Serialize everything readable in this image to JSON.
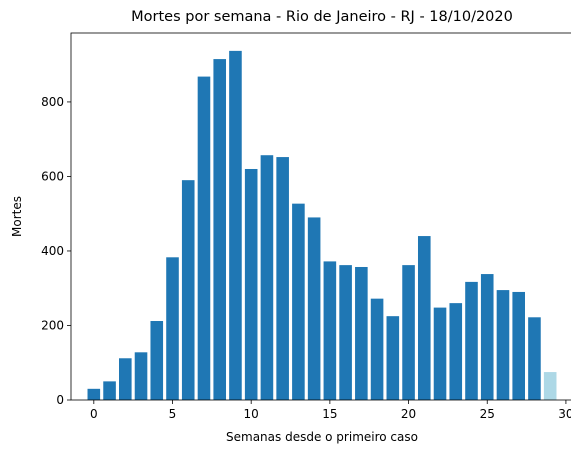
{
  "chart_data": {
    "type": "bar",
    "title": "Mortes por semana - Rio de Janeiro - RJ - 18/10/2020",
    "xlabel": "Semanas desde o primeiro caso",
    "ylabel": "Mortes",
    "x": [
      0,
      1,
      2,
      3,
      4,
      5,
      6,
      7,
      8,
      9,
      10,
      11,
      12,
      13,
      14,
      15,
      16,
      17,
      18,
      19,
      20,
      21,
      22,
      23,
      24,
      25,
      26,
      27,
      28,
      29
    ],
    "values": [
      30,
      50,
      112,
      128,
      212,
      383,
      590,
      868,
      915,
      937,
      620,
      657,
      652,
      527,
      490,
      372,
      362,
      357,
      272,
      225,
      362,
      440,
      248,
      260,
      317,
      338,
      295,
      290,
      222,
      75
    ],
    "bar_colors": [
      "#1f77b4",
      "#1f77b4",
      "#1f77b4",
      "#1f77b4",
      "#1f77b4",
      "#1f77b4",
      "#1f77b4",
      "#1f77b4",
      "#1f77b4",
      "#1f77b4",
      "#1f77b4",
      "#1f77b4",
      "#1f77b4",
      "#1f77b4",
      "#1f77b4",
      "#1f77b4",
      "#1f77b4",
      "#1f77b4",
      "#1f77b4",
      "#1f77b4",
      "#1f77b4",
      "#1f77b4",
      "#1f77b4",
      "#1f77b4",
      "#1f77b4",
      "#1f77b4",
      "#1f77b4",
      "#1f77b4",
      "#1f77b4",
      "#add8e6"
    ],
    "xlim": [
      -1.45,
      30.45
    ],
    "ylim": [
      0,
      985
    ],
    "xticks": [
      0,
      5,
      10,
      15,
      20,
      25,
      30
    ],
    "yticks": [
      0,
      200,
      400,
      600,
      800
    ],
    "grid": false
  }
}
